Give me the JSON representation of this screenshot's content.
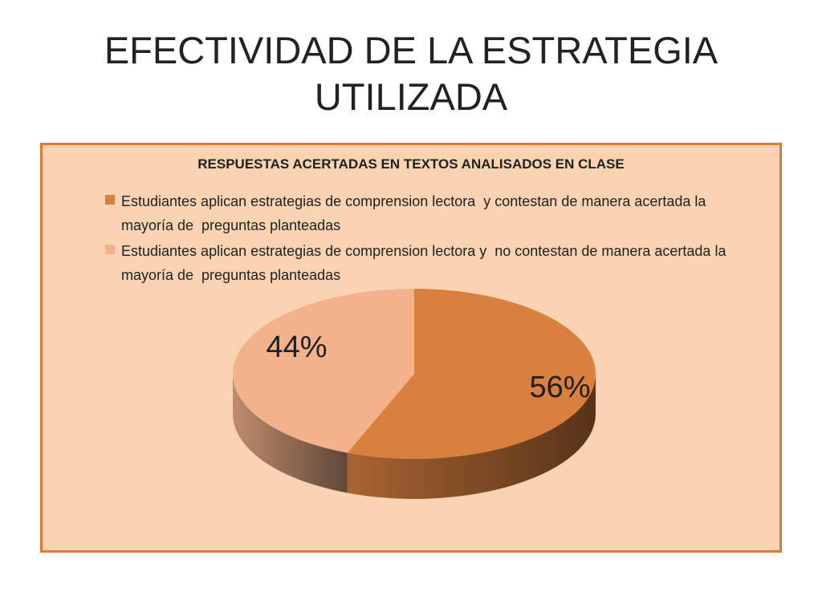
{
  "slide": {
    "title_line1": "EFECTIVIDAD DE LA ESTRATEGIA",
    "title_line2": "UTILIZADA"
  },
  "chart_data": {
    "type": "pie",
    "style": "3d",
    "title": "RESPUESTAS ACERTADAS EN TEXTOS ANALISADOS EN CLASE",
    "legend_position": "top",
    "slices": [
      {
        "label": "Estudiantes aplican estrategias de comprension lectora  y contestan de manera acertada la mayoría de  preguntas planteadas",
        "value": 56,
        "data_label": "56%",
        "color": "#d9803f"
      },
      {
        "label": "Estudiantes aplican estrategias de comprension lectora y  no contestan de manera acertada la mayoría de  preguntas planteadas",
        "value": 44,
        "data_label": "44%",
        "color": "#f3b28c"
      }
    ]
  }
}
